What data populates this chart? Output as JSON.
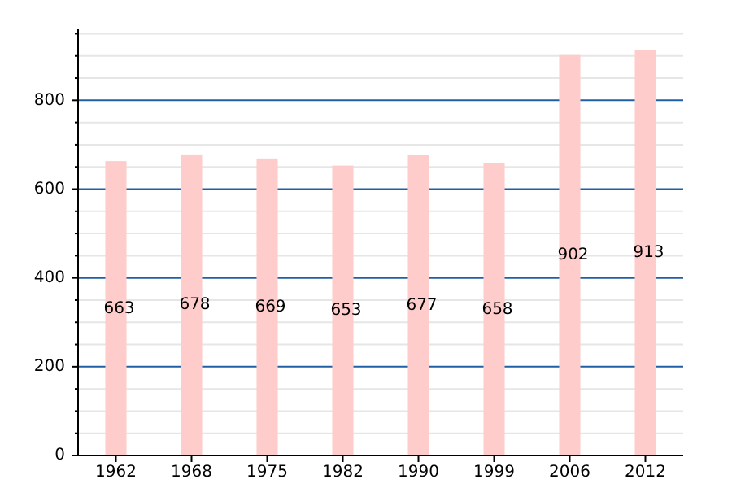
{
  "chart_data": {
    "type": "bar",
    "categories": [
      "1962",
      "1968",
      "1975",
      "1982",
      "1990",
      "1999",
      "2006",
      "2012"
    ],
    "values": [
      663,
      678,
      669,
      653,
      677,
      658,
      902,
      913
    ],
    "color": "#ffcccc",
    "data_labels": true,
    "ylim": [
      0,
      960
    ],
    "yticks": [
      0,
      {
        "value": 50,
        "label": null
      },
      {
        "value": 100,
        "label": null
      },
      {
        "value": 150,
        "label": null
      },
      200,
      {
        "value": 250,
        "label": null
      },
      {
        "value": 300,
        "label": null
      },
      {
        "value": 350,
        "label": null
      },
      400,
      {
        "value": 450,
        "label": null
      },
      {
        "value": 500,
        "label": null
      },
      {
        "value": 550,
        "label": null
      },
      600,
      {
        "value": 650,
        "label": null
      },
      {
        "value": 700,
        "label": null
      },
      {
        "value": 750,
        "label": null
      },
      800,
      {
        "value": 850,
        "label": null
      },
      {
        "value": 900,
        "label": null
      },
      {
        "value": 950,
        "label": null
      }
    ],
    "grid": "y"
  }
}
